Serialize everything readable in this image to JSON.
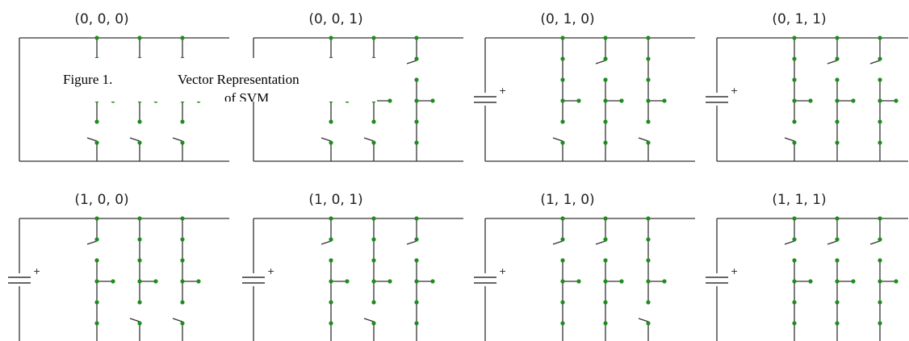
{
  "diagram": {
    "cells": [
      {
        "label": "(0, 0, 0)",
        "state": [
          0,
          0,
          0
        ],
        "has_battery": false
      },
      {
        "label": "(0, 0, 1)",
        "state": [
          0,
          0,
          1
        ],
        "has_battery": false
      },
      {
        "label": "(0, 1, 0)",
        "state": [
          0,
          1,
          0
        ],
        "has_battery": true
      },
      {
        "label": "(0, 1, 1)",
        "state": [
          0,
          1,
          1
        ],
        "has_battery": true
      },
      {
        "label": "(1, 0, 0)",
        "state": [
          1,
          0,
          0
        ],
        "has_battery": true
      },
      {
        "label": "(1, 0, 1)",
        "state": [
          1,
          0,
          1
        ],
        "has_battery": true
      },
      {
        "label": "(1, 1, 0)",
        "state": [
          1,
          1,
          0
        ],
        "has_battery": true
      },
      {
        "label": "(1, 1, 1)",
        "state": [
          1,
          1,
          1
        ],
        "has_battery": true
      }
    ],
    "battery_sign": "+",
    "colors": {
      "wire": "#333333",
      "node": "#1e8c1e"
    }
  },
  "caption": {
    "figure_number": "Figure 1.",
    "text": "Vector Representation",
    "cutoff_text": "of SVM"
  }
}
